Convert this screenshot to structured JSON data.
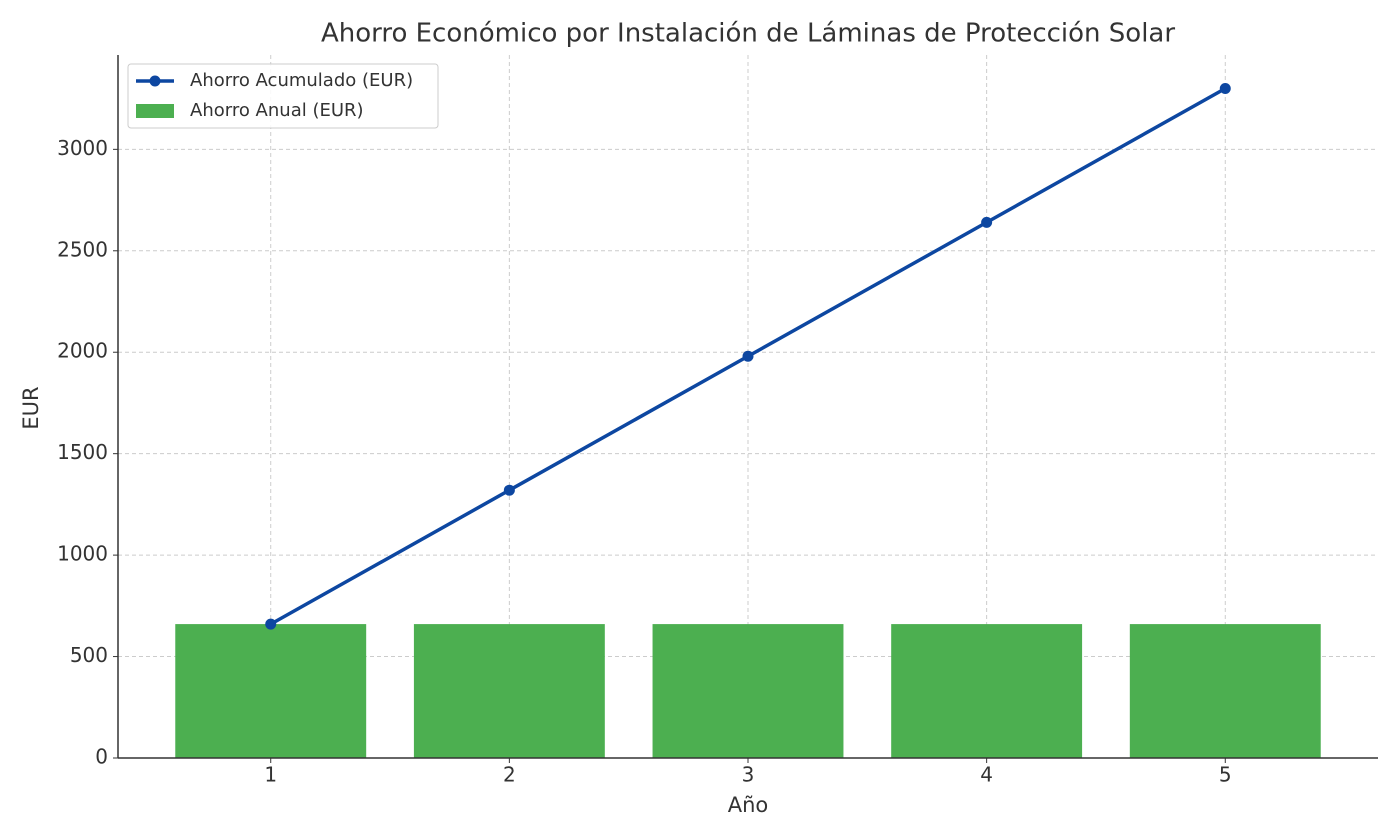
{
  "chart_data": {
    "type": "bar",
    "title": "Ahorro Económico por Instalación de Láminas de Protección Solar",
    "xlabel": "Año",
    "ylabel": "EUR",
    "x": [
      1,
      2,
      3,
      4,
      5
    ],
    "series": [
      {
        "name": "Ahorro Acumulado (EUR)",
        "type": "line",
        "color": "#0d47a1",
        "values": [
          660,
          1320,
          1980,
          2640,
          3300
        ]
      },
      {
        "name": "Ahorro Anual (EUR)",
        "type": "bar",
        "color": "#4caf50",
        "values": [
          660,
          660,
          660,
          660,
          660
        ]
      }
    ],
    "xlim": [
      0.36,
      5.64
    ],
    "xticks": [
      1,
      2,
      3,
      4,
      5
    ],
    "ylim": [
      0,
      3465
    ],
    "yticks": [
      0,
      500,
      1000,
      1500,
      2000,
      2500,
      3000
    ],
    "grid": true,
    "legend": "upper left"
  }
}
